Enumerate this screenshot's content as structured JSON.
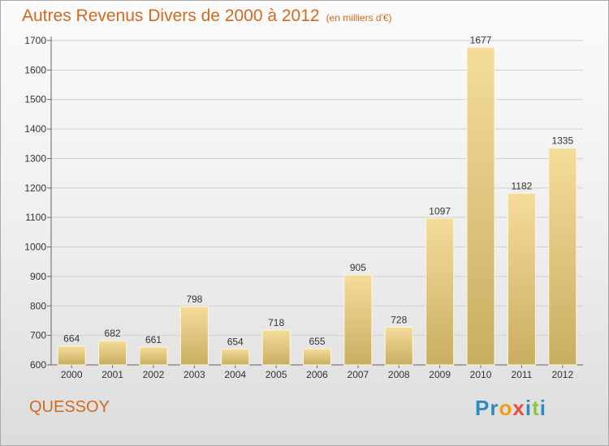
{
  "title": "Autres Revenus Divers de 2000 à 2012",
  "unit_note": "(en milliers d'€)",
  "commune": "QUESSOY",
  "logo": {
    "letters": [
      "P",
      "r",
      "o",
      "x",
      "i",
      "t",
      "i"
    ],
    "colors": [
      "#2e8bc0",
      "#2e8bc0",
      "#f39c12",
      "#e74c3c",
      "#2e8bc0",
      "#8cc63f",
      "#2e8bc0"
    ]
  },
  "colors": {
    "bar_light": "#f4dc9b",
    "bar_dark": "#c9ad61",
    "bar_border": "#fff6d8",
    "axis": "#666666",
    "grid": "#d0d0d0",
    "accent": "#d2691e"
  },
  "chart_data": {
    "type": "bar",
    "categories": [
      "2000",
      "2001",
      "2002",
      "2003",
      "2004",
      "2005",
      "2006",
      "2007",
      "2008",
      "2009",
      "2010",
      "2011",
      "2012"
    ],
    "values": [
      664,
      682,
      661,
      798,
      654,
      718,
      655,
      905,
      728,
      1097,
      1677,
      1182,
      1335
    ],
    "ylim": [
      600,
      1700
    ],
    "yticks": [
      600,
      700,
      800,
      900,
      1000,
      1100,
      1200,
      1300,
      1400,
      1500,
      1600,
      1700
    ],
    "grid": "horizontal",
    "xlabel": "",
    "ylabel": ""
  }
}
